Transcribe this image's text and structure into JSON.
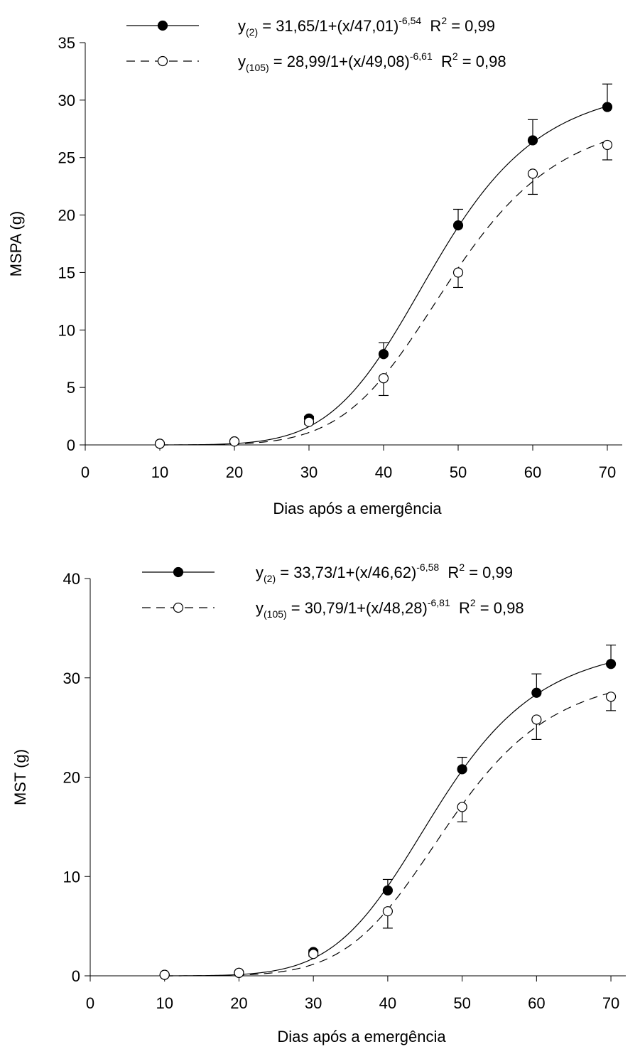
{
  "chart_data": [
    {
      "type": "scatter",
      "y_label": "MSPA (g)",
      "x_label": "Dias após a emergência",
      "x": [
        10,
        20,
        30,
        40,
        50,
        60,
        70
      ],
      "xlim": [
        0,
        72
      ],
      "xticks": [
        0,
        10,
        20,
        30,
        40,
        50,
        60,
        70
      ],
      "ylim": [
        0,
        35
      ],
      "yticks": [
        0,
        5,
        10,
        15,
        20,
        25,
        30,
        35
      ],
      "series": [
        {
          "color": "#000000",
          "marker_fill": "#000000",
          "line_style": "solid",
          "error_side": "up",
          "values": [
            0.1,
            0.3,
            2.3,
            7.9,
            19.1,
            26.5,
            29.4
          ],
          "errors": [
            0,
            0,
            0.2,
            1.0,
            1.4,
            1.8,
            2.0
          ],
          "fit": {
            "a": 31.65,
            "x0": 47.01,
            "b": -6.54
          },
          "equation": [
            {
              "text": "y"
            },
            {
              "sub": "(2)"
            },
            {
              "text": " = 31,65/1+(x/47,01)"
            },
            {
              "sup": "-6,54"
            },
            {
              "text": "  R"
            },
            {
              "sup": "2"
            },
            {
              "text": " = 0,99"
            }
          ]
        },
        {
          "color": "#000000",
          "marker_fill": "#ffffff",
          "line_style": "dashed",
          "error_side": "down",
          "values": [
            0.1,
            0.3,
            2.0,
            5.8,
            15.0,
            23.6,
            26.1
          ],
          "errors": [
            0,
            0,
            0.2,
            1.5,
            1.3,
            1.8,
            1.3
          ],
          "fit": {
            "a": 28.99,
            "x0": 49.08,
            "b": -6.61
          },
          "equation": [
            {
              "text": "y"
            },
            {
              "sub": "(105)"
            },
            {
              "text": " = 28,99/1+(x/49,08)"
            },
            {
              "sup": "-6,61"
            },
            {
              "text": "  R"
            },
            {
              "sup": "2"
            },
            {
              "text": " = 0,98"
            }
          ]
        }
      ]
    },
    {
      "type": "scatter",
      "y_label": "MST (g)",
      "x_label": "Dias após a emergência",
      "x": [
        10,
        20,
        30,
        40,
        50,
        60,
        70
      ],
      "xlim": [
        0,
        72
      ],
      "xticks": [
        0,
        10,
        20,
        30,
        40,
        50,
        60,
        70
      ],
      "ylim": [
        0,
        40
      ],
      "yticks": [
        0,
        10,
        20,
        30,
        40
      ],
      "series": [
        {
          "color": "#000000",
          "marker_fill": "#000000",
          "line_style": "solid",
          "error_side": "up",
          "values": [
            0.1,
            0.3,
            2.4,
            8.6,
            20.8,
            28.5,
            31.4
          ],
          "errors": [
            0,
            0,
            0.2,
            1.1,
            1.2,
            1.9,
            1.9
          ],
          "fit": {
            "a": 33.73,
            "x0": 46.62,
            "b": -6.58
          },
          "equation": [
            {
              "text": "y"
            },
            {
              "sub": "(2)"
            },
            {
              "text": " = 33,73/1+(x/46,62)"
            },
            {
              "sup": "-6,58"
            },
            {
              "text": "  R"
            },
            {
              "sup": "2"
            },
            {
              "text": " = 0,99"
            }
          ]
        },
        {
          "color": "#000000",
          "marker_fill": "#ffffff",
          "line_style": "dashed",
          "error_side": "down",
          "values": [
            0.1,
            0.3,
            2.2,
            6.5,
            17.0,
            25.8,
            28.1
          ],
          "errors": [
            0,
            0,
            0.2,
            1.7,
            1.5,
            2.0,
            1.4
          ],
          "fit": {
            "a": 30.79,
            "x0": 48.28,
            "b": -6.81
          },
          "equation": [
            {
              "text": "y"
            },
            {
              "sub": "(105)"
            },
            {
              "text": " = 30,79/1+(x/48,28)"
            },
            {
              "sup": "-6,81"
            },
            {
              "text": "  R"
            },
            {
              "sup": "2"
            },
            {
              "text": " = 0,98"
            }
          ]
        }
      ]
    }
  ]
}
